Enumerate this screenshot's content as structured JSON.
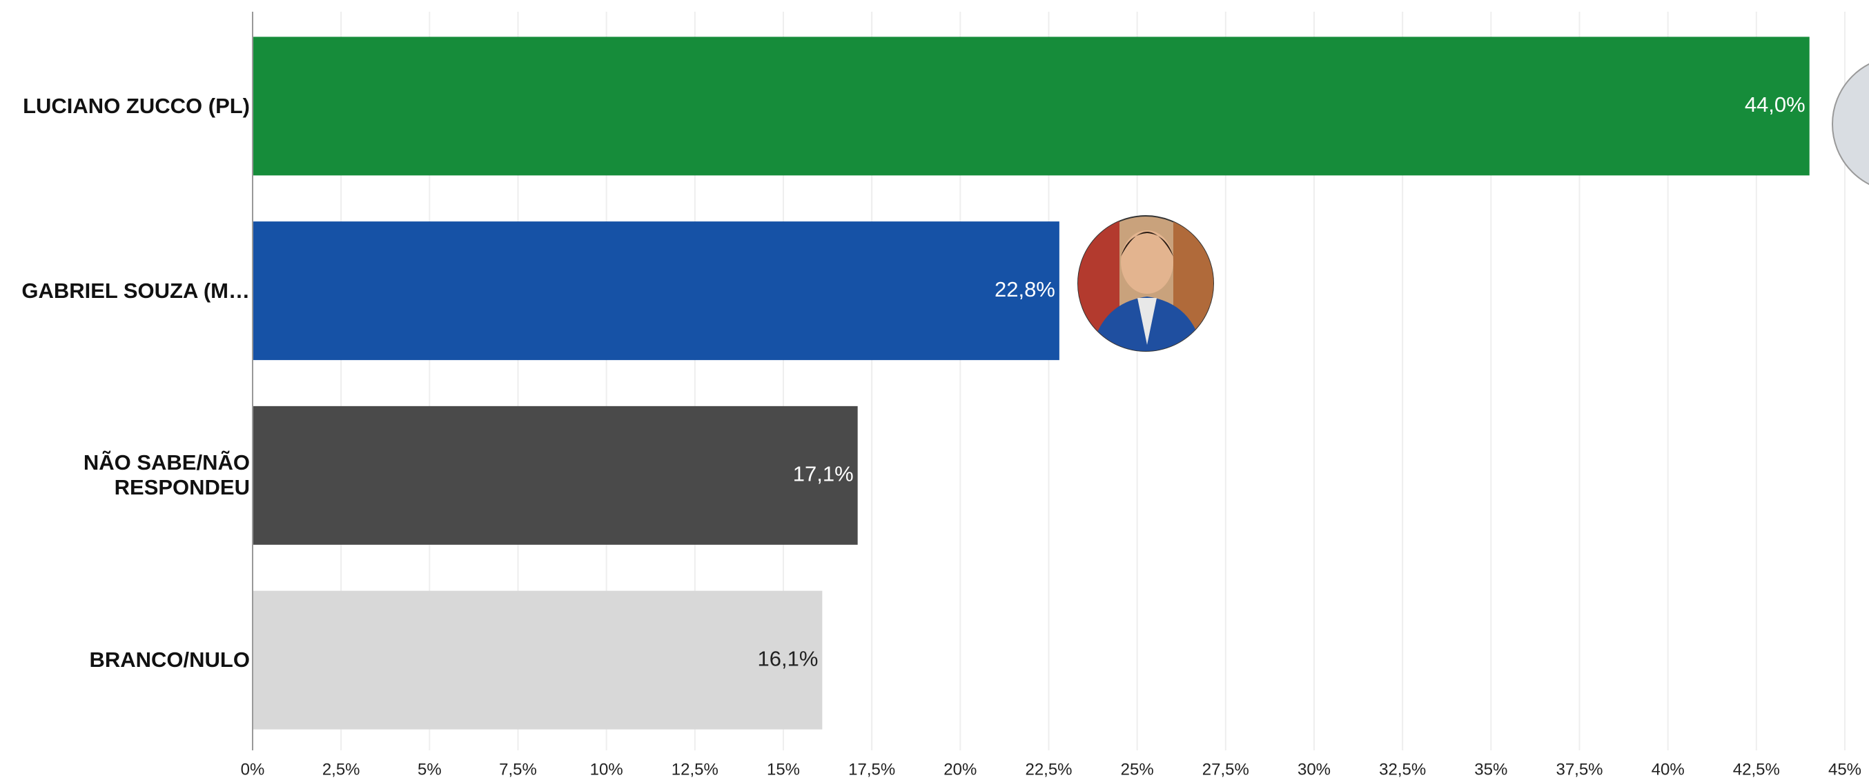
{
  "chart_data": {
    "type": "hbar",
    "categories": [
      "LUCIANO ZUCCO (PL)",
      "GABRIEL SOUZA (M…",
      "NÃO SABE/NÃO RESPONDEU",
      "BRANCO/NULO"
    ],
    "values": [
      44.0,
      22.8,
      17.1,
      16.1
    ],
    "value_labels": [
      "44,0%",
      "22,8%",
      "17,1%",
      "16,1%"
    ],
    "colors": [
      "#168c3a",
      "#1652a6",
      "#4a4a4a",
      "#d8d8d8"
    ],
    "xlim": [
      0,
      45
    ],
    "xticks": [
      {
        "value": 0,
        "label": "0%"
      },
      {
        "value": 2.5,
        "label": "2,5%"
      },
      {
        "value": 5,
        "label": "5%"
      },
      {
        "value": 7.5,
        "label": "7,5%"
      },
      {
        "value": 10,
        "label": "10%"
      },
      {
        "value": 12.5,
        "label": "12,5%"
      },
      {
        "value": 15,
        "label": "15%"
      },
      {
        "value": 17.5,
        "label": "17,5%"
      },
      {
        "value": 20,
        "label": "20%"
      },
      {
        "value": 22.5,
        "label": "22,5%"
      },
      {
        "value": 25,
        "label": "25%"
      },
      {
        "value": 27.5,
        "label": "27,5%"
      },
      {
        "value": 30,
        "label": "30%"
      },
      {
        "value": 32.5,
        "label": "32,5%"
      },
      {
        "value": 35,
        "label": "35%"
      },
      {
        "value": 37.5,
        "label": "37,5%"
      },
      {
        "value": 40,
        "label": "40%"
      },
      {
        "value": 42.5,
        "label": "42,5%"
      },
      {
        "value": 45,
        "label": "45%"
      }
    ],
    "grid": true
  }
}
